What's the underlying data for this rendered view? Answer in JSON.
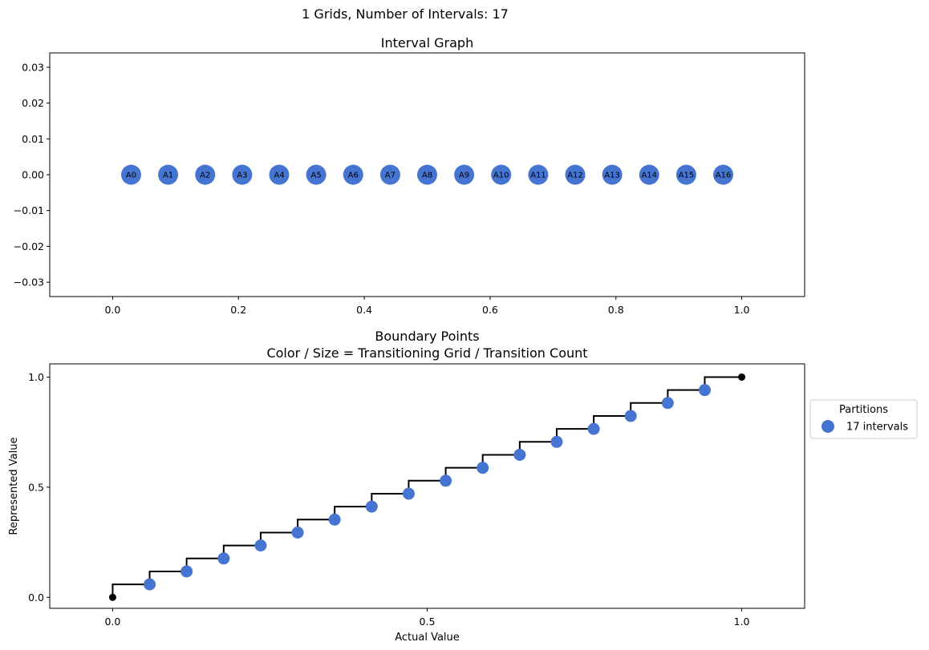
{
  "figure": {
    "suptitle": "1 Grids, Number of Intervals: 17"
  },
  "chart_data": [
    {
      "type": "scatter",
      "title": "Interval Graph",
      "xlabel": "",
      "ylabel": "",
      "xlim": [
        -0.1,
        1.1
      ],
      "ylim": [
        -0.034,
        0.034
      ],
      "x_ticks": [
        0.0,
        0.2,
        0.4,
        0.6,
        0.8,
        1.0
      ],
      "x_tick_labels": [
        "0.0",
        "0.2",
        "0.4",
        "0.6",
        "0.8",
        "1.0"
      ],
      "y_ticks": [
        0.03,
        0.02,
        0.01,
        0.0,
        -0.01,
        -0.02,
        -0.03
      ],
      "y_tick_labels": [
        "0.03",
        "0.02",
        "0.01",
        "0.00",
        "−0.01",
        "−0.02",
        "−0.03"
      ],
      "grid": false,
      "color": "#4675d1",
      "points": [
        {
          "label": "A0",
          "x": 0.0294,
          "y": 0
        },
        {
          "label": "A1",
          "x": 0.0882,
          "y": 0
        },
        {
          "label": "A2",
          "x": 0.1471,
          "y": 0
        },
        {
          "label": "A3",
          "x": 0.2059,
          "y": 0
        },
        {
          "label": "A4",
          "x": 0.2647,
          "y": 0
        },
        {
          "label": "A5",
          "x": 0.3235,
          "y": 0
        },
        {
          "label": "A6",
          "x": 0.3824,
          "y": 0
        },
        {
          "label": "A7",
          "x": 0.4412,
          "y": 0
        },
        {
          "label": "A8",
          "x": 0.5,
          "y": 0
        },
        {
          "label": "A9",
          "x": 0.5588,
          "y": 0
        },
        {
          "label": "A10",
          "x": 0.6176,
          "y": 0
        },
        {
          "label": "A11",
          "x": 0.6765,
          "y": 0
        },
        {
          "label": "A12",
          "x": 0.7353,
          "y": 0
        },
        {
          "label": "A13",
          "x": 0.7941,
          "y": 0
        },
        {
          "label": "A14",
          "x": 0.8529,
          "y": 0
        },
        {
          "label": "A15",
          "x": 0.9118,
          "y": 0
        },
        {
          "label": "A16",
          "x": 0.9706,
          "y": 0
        }
      ]
    },
    {
      "type": "line",
      "title": "Boundary Points\nColor / Size = Transitioning Grid / Transition Count",
      "xlabel": "Actual Value",
      "ylabel": "Represented Value",
      "xlim": [
        -0.1,
        1.1
      ],
      "ylim": [
        -0.05,
        1.06
      ],
      "x_ticks": [
        0.0,
        0.5,
        1.0
      ],
      "x_tick_labels": [
        "0.0",
        "0.5",
        "1.0"
      ],
      "y_ticks": [
        0.0,
        0.5,
        1.0
      ],
      "y_tick_labels": [
        "0.0",
        "0.5",
        "1.0"
      ],
      "grid": false,
      "step_color": "#000000",
      "endpoints": [
        {
          "x": 0.0,
          "y": 0.0
        },
        {
          "x": 1.0,
          "y": 1.0
        }
      ],
      "step_levels": [
        0.0588,
        0.1176,
        0.1765,
        0.2353,
        0.2941,
        0.3529,
        0.4118,
        0.4706,
        0.5294,
        0.5882,
        0.6471,
        0.7059,
        0.7647,
        0.8235,
        0.8824,
        0.9412,
        1.0
      ],
      "series": [
        {
          "name": "17 intervals",
          "color": "#4675d1",
          "x": [
            0.0588,
            0.1176,
            0.1765,
            0.2353,
            0.2941,
            0.3529,
            0.4118,
            0.4706,
            0.5294,
            0.5882,
            0.6471,
            0.7059,
            0.7647,
            0.8235,
            0.8824,
            0.9412
          ],
          "y": [
            0.0588,
            0.1176,
            0.1765,
            0.2353,
            0.2941,
            0.3529,
            0.4118,
            0.4706,
            0.5294,
            0.5882,
            0.6471,
            0.7059,
            0.7647,
            0.8235,
            0.8824,
            0.9412
          ]
        }
      ],
      "legend": {
        "title": "Partitions",
        "placement": "outside-right",
        "entries": [
          "17 intervals"
        ]
      }
    }
  ]
}
